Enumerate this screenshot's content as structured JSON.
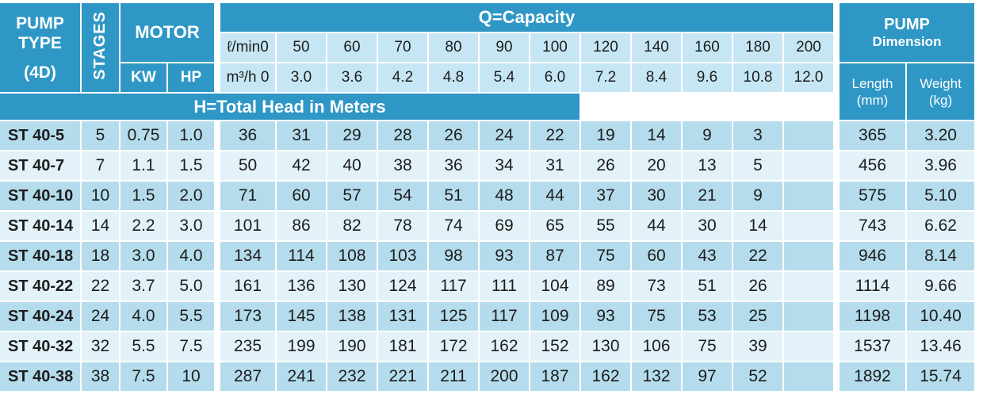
{
  "header": {
    "pump_type": "PUMP TYPE",
    "model": "(4D)",
    "stages": "STAGES",
    "motor": "MOTOR",
    "kw": "KW",
    "hp": "HP",
    "capacity_title": "Q=Capacity",
    "head_title": "H=Total Head in Meters",
    "lmin_label": "ℓ/min",
    "m3h_label": "m³/h",
    "lmin_values": [
      "0",
      "50",
      "60",
      "70",
      "80",
      "90",
      "100",
      "120",
      "140",
      "160",
      "180",
      "200"
    ],
    "m3h_values": [
      "0",
      "3.0",
      "3.6",
      "4.2",
      "4.8",
      "5.4",
      "6.0",
      "7.2",
      "8.4",
      "9.6",
      "10.8",
      "12.0"
    ],
    "dimension_title_line1": "PUMP",
    "dimension_title_line2": "Dimension",
    "length_label": "Length",
    "length_unit": "(mm)",
    "weight_label": "Weight",
    "weight_unit": "(kg)"
  },
  "rows": [
    {
      "type": "ST 40-5",
      "stages": "5",
      "kw": "0.75",
      "hp": "1.0",
      "head": [
        "36",
        "31",
        "29",
        "28",
        "26",
        "24",
        "22",
        "19",
        "14",
        "9",
        "3",
        ""
      ],
      "length": "365",
      "weight": "3.20"
    },
    {
      "type": "ST 40-7",
      "stages": "7",
      "kw": "1.1",
      "hp": "1.5",
      "head": [
        "50",
        "42",
        "40",
        "38",
        "36",
        "34",
        "31",
        "26",
        "20",
        "13",
        "5",
        ""
      ],
      "length": "456",
      "weight": "3.96"
    },
    {
      "type": "ST 40-10",
      "stages": "10",
      "kw": "1.5",
      "hp": "2.0",
      "head": [
        "71",
        "60",
        "57",
        "54",
        "51",
        "48",
        "44",
        "37",
        "30",
        "21",
        "9",
        ""
      ],
      "length": "575",
      "weight": "5.10"
    },
    {
      "type": "ST 40-14",
      "stages": "14",
      "kw": "2.2",
      "hp": "3.0",
      "head": [
        "101",
        "86",
        "82",
        "78",
        "74",
        "69",
        "65",
        "55",
        "44",
        "30",
        "14",
        ""
      ],
      "length": "743",
      "weight": "6.62"
    },
    {
      "type": "ST 40-18",
      "stages": "18",
      "kw": "3.0",
      "hp": "4.0",
      "head": [
        "134",
        "114",
        "108",
        "103",
        "98",
        "93",
        "87",
        "75",
        "60",
        "43",
        "22",
        ""
      ],
      "length": "946",
      "weight": "8.14"
    },
    {
      "type": "ST 40-22",
      "stages": "22",
      "kw": "3.7",
      "hp": "5.0",
      "head": [
        "161",
        "136",
        "130",
        "124",
        "117",
        "111",
        "104",
        "89",
        "73",
        "51",
        "26",
        ""
      ],
      "length": "1114",
      "weight": "9.66"
    },
    {
      "type": "ST 40-24",
      "stages": "24",
      "kw": "4.0",
      "hp": "5.5",
      "head": [
        "173",
        "145",
        "138",
        "131",
        "125",
        "117",
        "109",
        "93",
        "75",
        "53",
        "25",
        ""
      ],
      "length": "1198",
      "weight": "10.40"
    },
    {
      "type": "ST 40-32",
      "stages": "32",
      "kw": "5.5",
      "hp": "7.5",
      "head": [
        "235",
        "199",
        "190",
        "181",
        "172",
        "162",
        "152",
        "130",
        "106",
        "75",
        "39",
        ""
      ],
      "length": "1537",
      "weight": "13.46"
    },
    {
      "type": "ST 40-38",
      "stages": "38",
      "kw": "7.5",
      "hp": "10",
      "head": [
        "287",
        "241",
        "232",
        "221",
        "211",
        "200",
        "187",
        "162",
        "132",
        "97",
        "52",
        ""
      ],
      "length": "1892",
      "weight": "15.74"
    }
  ],
  "colors": {
    "header_blue": "#2f97c5",
    "header_light": "#c6e6f3",
    "row_dark": "#b5dcec",
    "row_light": "#e3f2f9"
  }
}
